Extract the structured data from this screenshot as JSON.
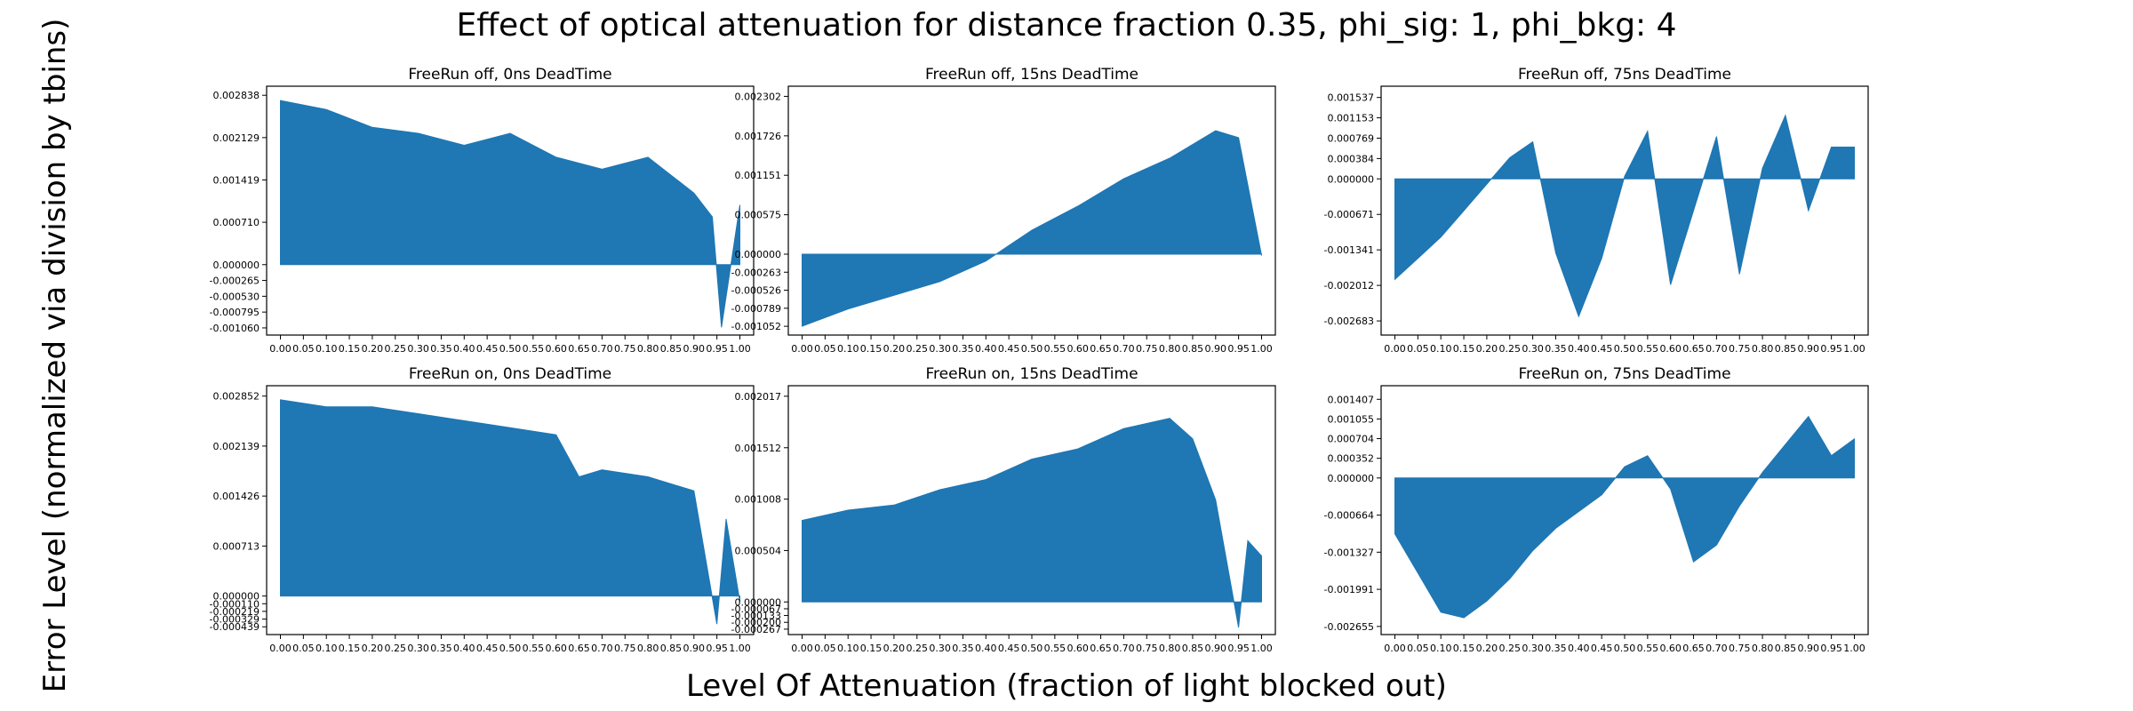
{
  "figure": {
    "title": "Effect of optical attenuation for distance fraction 0.35, phi_sig: 1, phi_bkg: 4",
    "xlabel": "Level Of Attenuation (fraction of light blocked out)",
    "ylabel": "Error Level (normalized via division by tbins)"
  },
  "colors": {
    "fill": "#1f77b4",
    "axes": "#000000",
    "background": "#ffffff"
  },
  "chart_data": [
    {
      "type": "area",
      "title": "FreeRun off, 0ns DeadTime",
      "x_ticks": [
        "0.00",
        "0.05",
        "0.10",
        "0.15",
        "0.20",
        "0.25",
        "0.30",
        "0.35",
        "0.40",
        "0.45",
        "0.50",
        "0.55",
        "0.60",
        "0.65",
        "0.70",
        "0.75",
        "0.80",
        "0.85",
        "0.90",
        "0.95",
        "1.00"
      ],
      "y_ticks": [
        "0.002838",
        "0.002129",
        "0.001419",
        "0.000710",
        "0.000000",
        "-0.000265",
        "-0.000530",
        "-0.000795",
        "-0.001060"
      ],
      "ylim": [
        -0.00118,
        0.00299
      ],
      "xlim": [
        -0.03,
        1.03
      ],
      "x": [
        0,
        0.1,
        0.2,
        0.3,
        0.4,
        0.5,
        0.6,
        0.7,
        0.8,
        0.9,
        0.94,
        0.96,
        1.0
      ],
      "values": [
        0.00275,
        0.0026,
        0.0023,
        0.0022,
        0.002,
        0.0022,
        0.0018,
        0.0016,
        0.0018,
        0.0012,
        0.0008,
        -0.00105,
        0.001
      ]
    },
    {
      "type": "area",
      "title": "FreeRun off, 15ns DeadTime",
      "x_ticks": [
        "0.00",
        "0.05",
        "0.10",
        "0.15",
        "0.20",
        "0.25",
        "0.30",
        "0.35",
        "0.40",
        "0.45",
        "0.50",
        "0.55",
        "0.60",
        "0.65",
        "0.70",
        "0.75",
        "0.80",
        "0.85",
        "0.90",
        "0.95",
        "1.00"
      ],
      "y_ticks": [
        "0.002302",
        "0.001726",
        "0.001151",
        "0.000575",
        "0.000000",
        "-0.000263",
        "-0.000526",
        "-0.000789",
        "-0.001052"
      ],
      "ylim": [
        -0.00118,
        0.00245
      ],
      "xlim": [
        -0.03,
        1.03
      ],
      "x": [
        0,
        0.1,
        0.2,
        0.3,
        0.4,
        0.5,
        0.6,
        0.7,
        0.8,
        0.9,
        0.95,
        1.0
      ],
      "values": [
        -0.00105,
        -0.0008,
        -0.0006,
        -0.0004,
        -0.0001,
        0.00035,
        0.0007,
        0.0011,
        0.0014,
        0.0018,
        0.0017,
        -2e-05
      ]
    },
    {
      "type": "area",
      "title": "FreeRun off, 75ns DeadTime",
      "x_ticks": [
        "0.00",
        "0.05",
        "0.10",
        "0.15",
        "0.20",
        "0.25",
        "0.30",
        "0.35",
        "0.40",
        "0.45",
        "0.50",
        "0.55",
        "0.60",
        "0.65",
        "0.70",
        "0.75",
        "0.80",
        "0.85",
        "0.90",
        "0.95",
        "1.00"
      ],
      "y_ticks": [
        "0.001537",
        "0.001153",
        "0.000769",
        "0.000384",
        "0.000000",
        "-0.000671",
        "-0.001341",
        "-0.002012",
        "-0.002683"
      ],
      "ylim": [
        -0.00295,
        0.00175
      ],
      "xlim": [
        -0.03,
        1.03
      ],
      "x": [
        0,
        0.05,
        0.1,
        0.15,
        0.2,
        0.25,
        0.3,
        0.35,
        0.4,
        0.45,
        0.5,
        0.55,
        0.6,
        0.65,
        0.7,
        0.75,
        0.8,
        0.85,
        0.9,
        0.95,
        1.0
      ],
      "values": [
        -0.0019,
        -0.0015,
        -0.0011,
        -0.0006,
        -0.0001,
        0.0004,
        0.0007,
        -0.0014,
        -0.0026,
        -0.0015,
        5e-05,
        0.0009,
        -0.002,
        -0.0006,
        0.0008,
        -0.0018,
        0.0002,
        0.0012,
        -0.0006,
        0.0006,
        0.0006
      ]
    },
    {
      "type": "area",
      "title": "FreeRun on, 0ns DeadTime",
      "x_ticks": [
        "0.00",
        "0.05",
        "0.10",
        "0.15",
        "0.20",
        "0.25",
        "0.30",
        "0.35",
        "0.40",
        "0.45",
        "0.50",
        "0.55",
        "0.60",
        "0.65",
        "0.70",
        "0.75",
        "0.80",
        "0.85",
        "0.90",
        "0.95",
        "1.00"
      ],
      "y_ticks": [
        "0.002852",
        "0.002139",
        "0.001426",
        "0.000713",
        "0.000000",
        "-0.000110",
        "-0.000219",
        "-0.000329",
        "-0.000439"
      ],
      "ylim": [
        -0.00055,
        0.003
      ],
      "xlim": [
        -0.03,
        1.03
      ],
      "x": [
        0,
        0.1,
        0.2,
        0.3,
        0.4,
        0.5,
        0.6,
        0.65,
        0.7,
        0.8,
        0.9,
        0.95,
        0.97,
        1.0
      ],
      "values": [
        0.0028,
        0.0027,
        0.0027,
        0.0026,
        0.0025,
        0.0024,
        0.0023,
        0.0017,
        0.0018,
        0.0017,
        0.0015,
        -0.0004,
        0.0011,
        -8e-05
      ]
    },
    {
      "type": "area",
      "title": "FreeRun on, 15ns DeadTime",
      "x_ticks": [
        "0.00",
        "0.05",
        "0.10",
        "0.15",
        "0.20",
        "0.25",
        "0.30",
        "0.35",
        "0.40",
        "0.45",
        "0.50",
        "0.55",
        "0.60",
        "0.65",
        "0.70",
        "0.75",
        "0.80",
        "0.85",
        "0.90",
        "0.95",
        "1.00"
      ],
      "y_ticks": [
        "0.002017",
        "0.001512",
        "0.001008",
        "0.000504",
        "0.000000",
        "-0.000067",
        "-0.000133",
        "-0.000200",
        "-0.000267"
      ],
      "ylim": [
        -0.00032,
        0.00212
      ],
      "xlim": [
        -0.03,
        1.03
      ],
      "x": [
        0,
        0.1,
        0.2,
        0.3,
        0.4,
        0.5,
        0.6,
        0.7,
        0.8,
        0.85,
        0.9,
        0.95,
        0.97,
        1.0
      ],
      "values": [
        0.0008,
        0.0009,
        0.00095,
        0.0011,
        0.0012,
        0.0014,
        0.0015,
        0.0017,
        0.0018,
        0.0016,
        0.001,
        -0.00025,
        0.0006,
        0.00045
      ]
    },
    {
      "type": "area",
      "title": "FreeRun on, 75ns DeadTime",
      "x_ticks": [
        "0.00",
        "0.05",
        "0.10",
        "0.15",
        "0.20",
        "0.25",
        "0.30",
        "0.35",
        "0.40",
        "0.45",
        "0.50",
        "0.55",
        "0.60",
        "0.65",
        "0.70",
        "0.75",
        "0.80",
        "0.85",
        "0.90",
        "0.95",
        "1.00"
      ],
      "y_ticks": [
        "0.001407",
        "0.001055",
        "0.000704",
        "0.000352",
        "0.000000",
        "-0.000664",
        "-0.001327",
        "-0.001991",
        "-0.002655"
      ],
      "ylim": [
        -0.0028,
        0.00165
      ],
      "xlim": [
        -0.03,
        1.03
      ],
      "x": [
        0,
        0.05,
        0.1,
        0.15,
        0.2,
        0.25,
        0.3,
        0.35,
        0.4,
        0.45,
        0.5,
        0.55,
        0.6,
        0.65,
        0.7,
        0.75,
        0.8,
        0.85,
        0.9,
        0.95,
        1.0
      ],
      "values": [
        -0.001,
        -0.0017,
        -0.0024,
        -0.0025,
        -0.0022,
        -0.0018,
        -0.0013,
        -0.0009,
        -0.0006,
        -0.0003,
        0.0002,
        0.0004,
        -0.0002,
        -0.0015,
        -0.0012,
        -0.0005,
        0.0001,
        0.0006,
        0.0011,
        0.0004,
        0.0007
      ]
    }
  ]
}
